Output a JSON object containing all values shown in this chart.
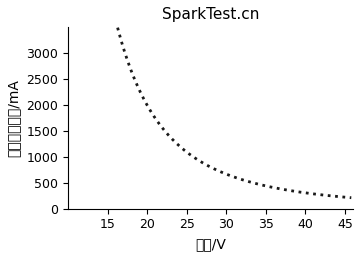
{
  "title": "SparkTest.cn",
  "xlabel": "电压/V",
  "ylabel": "最大允许电流/mA",
  "xlim": [
    10,
    46
  ],
  "ylim": [
    0,
    3500
  ],
  "xticks": [
    15,
    20,
    25,
    30,
    35,
    40,
    45
  ],
  "yticks": [
    0,
    500,
    1000,
    1500,
    2000,
    2500,
    3000
  ],
  "x_start": 11.5,
  "x_end": 45.8,
  "curve_color": "#1a1a1a",
  "background_color": "#ffffff",
  "title_fontsize": 11,
  "axis_label_fontsize": 10,
  "tick_fontsize": 9,
  "line_width": 2.0,
  "k": 6500000,
  "power": 2.7
}
